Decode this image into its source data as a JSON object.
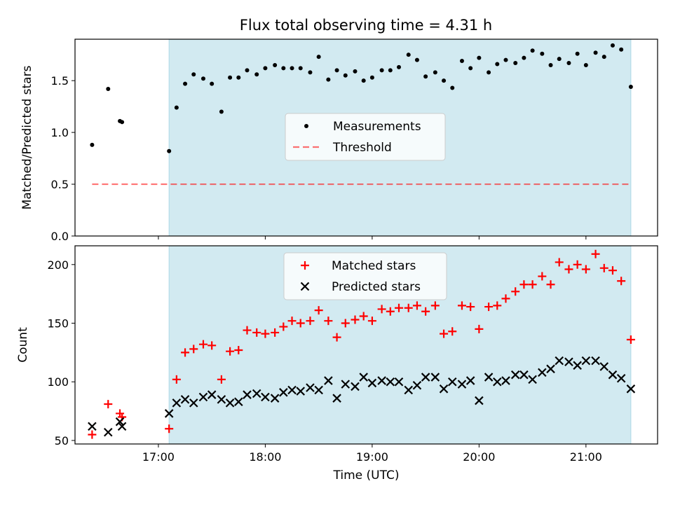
{
  "figure_title": "Flux total observing time = 4.31 h",
  "colors": {
    "shade": "#add8e6",
    "threshold": "#ff0000",
    "measurement": "#000000",
    "matched": "#ff0000",
    "predicted": "#000000"
  },
  "chart_data": [
    {
      "type": "scatter",
      "title": "Flux total observing time = 4.31 h",
      "xlabel": "",
      "ylabel": "Matched/Predicted stars",
      "x_unit": "hours UTC",
      "xlim": [
        16.22,
        21.67
      ],
      "ylim": [
        0.0,
        1.9
      ],
      "yticks": [
        0.0,
        0.5,
        1.0,
        1.5
      ],
      "ytick_labels": [
        "0.0",
        "0.5",
        "1.0",
        "1.5"
      ],
      "shaded_region": [
        17.1,
        21.42
      ],
      "threshold": {
        "name": "Threshold",
        "value": 0.5,
        "x_range": [
          16.38,
          21.42
        ],
        "style": "dashed"
      },
      "legend": {
        "position": "center",
        "entries": [
          "Measurements",
          "Threshold"
        ]
      },
      "series": [
        {
          "name": "Measurements",
          "marker": "dot",
          "x": [
            16.38,
            16.53,
            16.64,
            16.66,
            17.1,
            17.17,
            17.25,
            17.33,
            17.42,
            17.5,
            17.59,
            17.67,
            17.75,
            17.83,
            17.92,
            18.0,
            18.09,
            18.17,
            18.25,
            18.33,
            18.42,
            18.5,
            18.59,
            18.67,
            18.75,
            18.84,
            18.92,
            19.0,
            19.09,
            19.17,
            19.25,
            19.34,
            19.42,
            19.5,
            19.59,
            19.67,
            19.75,
            19.84,
            19.92,
            20.0,
            20.09,
            20.17,
            20.25,
            20.34,
            20.42,
            20.5,
            20.59,
            20.67,
            20.75,
            20.84,
            20.92,
            21.0,
            21.09,
            21.17,
            21.25,
            21.33,
            21.42
          ],
          "y": [
            0.88,
            1.42,
            1.11,
            1.1,
            0.82,
            1.24,
            1.47,
            1.56,
            1.52,
            1.47,
            1.2,
            1.53,
            1.53,
            1.6,
            1.56,
            1.62,
            1.65,
            1.62,
            1.62,
            1.62,
            1.58,
            1.73,
            1.51,
            1.6,
            1.55,
            1.59,
            1.5,
            1.53,
            1.6,
            1.6,
            1.63,
            1.75,
            1.7,
            1.54,
            1.58,
            1.5,
            1.43,
            1.69,
            1.62,
            1.72,
            1.58,
            1.66,
            1.7,
            1.67,
            1.72,
            1.79,
            1.76,
            1.65,
            1.71,
            1.67,
            1.76,
            1.65,
            1.77,
            1.73,
            1.84,
            1.8,
            1.44
          ]
        }
      ]
    },
    {
      "type": "scatter",
      "xlabel": "Time (UTC)",
      "ylabel": "Count",
      "x_unit": "hours UTC",
      "xlim": [
        16.22,
        21.67
      ],
      "ylim": [
        47,
        216
      ],
      "xticks": [
        17,
        18,
        19,
        20,
        21
      ],
      "xtick_labels": [
        "17:00",
        "18:00",
        "19:00",
        "20:00",
        "21:00"
      ],
      "yticks": [
        50,
        100,
        150,
        200
      ],
      "ytick_labels": [
        "50",
        "100",
        "150",
        "200"
      ],
      "shaded_region": [
        17.1,
        21.42
      ],
      "legend": {
        "position": "top-center",
        "entries": [
          "Matched stars",
          "Predicted stars"
        ]
      },
      "series": [
        {
          "name": "Matched stars",
          "marker": "plus",
          "x": [
            16.38,
            16.53,
            16.64,
            16.66,
            17.1,
            17.17,
            17.25,
            17.33,
            17.42,
            17.5,
            17.59,
            17.67,
            17.75,
            17.83,
            17.92,
            18.0,
            18.09,
            18.17,
            18.25,
            18.33,
            18.42,
            18.5,
            18.59,
            18.67,
            18.75,
            18.84,
            18.92,
            19.0,
            19.09,
            19.17,
            19.25,
            19.34,
            19.42,
            19.5,
            19.59,
            19.67,
            19.75,
            19.84,
            19.92,
            20.0,
            20.09,
            20.17,
            20.25,
            20.34,
            20.42,
            20.5,
            20.59,
            20.67,
            20.75,
            20.84,
            20.92,
            21.0,
            21.09,
            21.17,
            21.25,
            21.33,
            21.42
          ],
          "y": [
            55,
            81,
            73,
            70,
            60,
            102,
            125,
            128,
            132,
            131,
            102,
            126,
            127,
            144,
            142,
            141,
            142,
            147,
            152,
            150,
            152,
            161,
            152,
            138,
            150,
            153,
            156,
            152,
            162,
            160,
            163,
            163,
            165,
            160,
            165,
            141,
            143,
            165,
            164,
            145,
            164,
            165,
            171,
            177,
            183,
            183,
            190,
            183,
            202,
            196,
            200,
            196,
            209,
            197,
            195,
            186,
            136
          ]
        },
        {
          "name": "Predicted stars",
          "marker": "x",
          "x": [
            16.38,
            16.53,
            16.64,
            16.66,
            17.1,
            17.17,
            17.25,
            17.33,
            17.42,
            17.5,
            17.59,
            17.67,
            17.75,
            17.83,
            17.92,
            18.0,
            18.09,
            18.17,
            18.25,
            18.33,
            18.42,
            18.5,
            18.59,
            18.67,
            18.75,
            18.84,
            18.92,
            19.0,
            19.09,
            19.17,
            19.25,
            19.34,
            19.42,
            19.5,
            19.59,
            19.67,
            19.75,
            19.84,
            19.92,
            20.0,
            20.09,
            20.17,
            20.25,
            20.34,
            20.42,
            20.5,
            20.59,
            20.67,
            20.75,
            20.84,
            20.92,
            21.0,
            21.09,
            21.17,
            21.25,
            21.33,
            21.42
          ],
          "y": [
            62,
            57,
            66,
            62,
            73,
            82,
            85,
            82,
            87,
            89,
            85,
            82,
            83,
            89,
            90,
            87,
            86,
            91,
            93,
            92,
            95,
            93,
            101,
            86,
            98,
            96,
            104,
            99,
            101,
            100,
            100,
            93,
            97,
            104,
            104,
            94,
            100,
            98,
            101,
            84,
            104,
            100,
            101,
            106,
            106,
            102,
            108,
            111,
            118,
            117,
            114,
            118,
            118,
            113,
            106,
            103,
            94
          ]
        }
      ]
    }
  ]
}
